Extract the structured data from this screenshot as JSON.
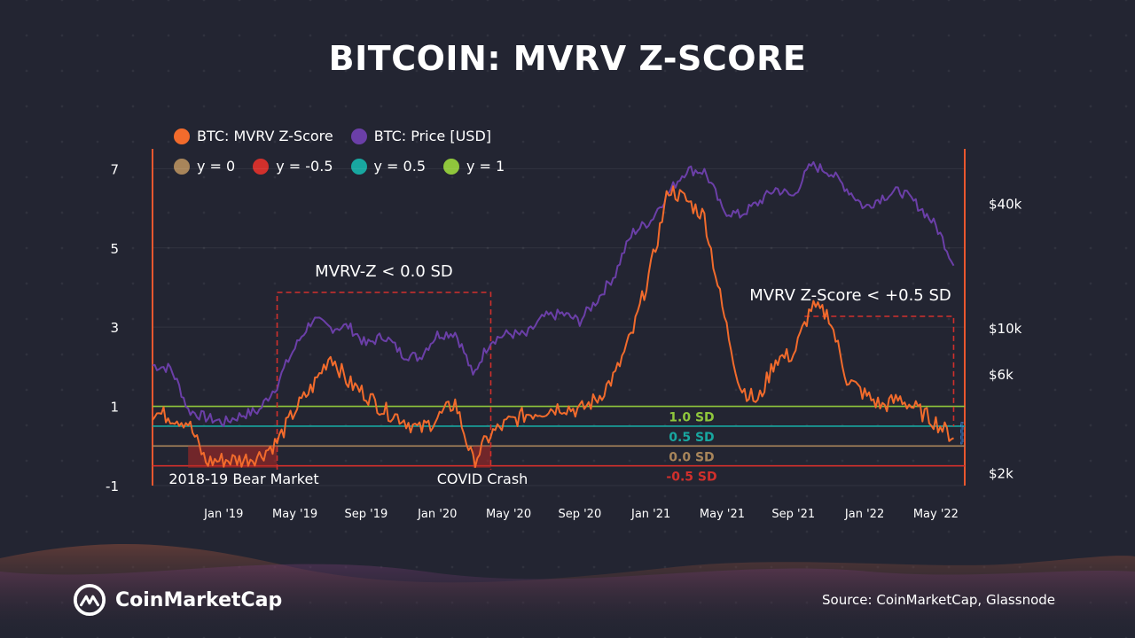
{
  "title": "BITCOIN: MVRV Z-SCORE",
  "legend": [
    {
      "label": "BTC: MVRV Z-Score",
      "color": "#f26b2c"
    },
    {
      "label": "BTC: Price [USD]",
      "color": "#6b3fa8"
    },
    {
      "label": "y = 0",
      "color": "#a8855a"
    },
    {
      "label": "y = -0.5",
      "color": "#d1302c"
    },
    {
      "label": "y = 0.5",
      "color": "#18a7a0"
    },
    {
      "label": "y = 1",
      "color": "#8fc63c"
    }
  ],
  "chart_data": {
    "type": "line",
    "title": "BITCOIN: MVRV Z-SCORE",
    "y_left_ticks": [
      "7",
      "5",
      "3",
      "1",
      "-1"
    ],
    "y_left_tick_values": [
      7,
      5,
      3,
      1,
      -1
    ],
    "y_left_range": [
      -1,
      7.5
    ],
    "y_right_ticks": [
      "$40k",
      "$10k",
      "$6k",
      "$2k"
    ],
    "y_right_tick_values": [
      40000,
      10000,
      6000,
      2000
    ],
    "y_right_scale": "log",
    "x_ticks": [
      "Jan '19",
      "May '19",
      "Sep '19",
      "Jan '20",
      "May '20",
      "Sep '20",
      "Jan '21",
      "May '21",
      "Sep '21",
      "Jan '22",
      "May '22"
    ],
    "x_range": [
      "2018-09",
      "2022-06-20"
    ],
    "grid": true,
    "legend_position": "top-left",
    "reference_lines": [
      {
        "label": "1.0 SD",
        "y": 1.0,
        "color": "#8fc63c"
      },
      {
        "label": "0.5 SD",
        "y": 0.5,
        "color": "#18a7a0"
      },
      {
        "label": "0.0 SD",
        "y": 0.0,
        "color": "#a8855a"
      },
      {
        "label": "-0.5 SD",
        "y": -0.5,
        "color": "#d1302c"
      }
    ],
    "annotations": [
      {
        "label": "MVRV-Z < 0.0 SD",
        "from": "2019-04",
        "to": "2020-04"
      },
      {
        "label": "MVRV Z-Score < +0.5 SD",
        "from": "2021-09-20",
        "to": "2022-06"
      },
      {
        "label": "2018-19 Bear Market",
        "from": "2018-11",
        "to": "2019-04"
      },
      {
        "label": "COVID Crash",
        "from": "2020-03",
        "to": "2020-04"
      }
    ],
    "series": [
      {
        "name": "BTC: MVRV Z-Score",
        "color": "#f26b2c",
        "x": [
          "2018-09",
          "2018-10",
          "2018-11",
          "2018-12",
          "2019-01",
          "2019-02",
          "2019-03",
          "2019-04",
          "2019-05",
          "2019-06",
          "2019-07",
          "2019-08",
          "2019-09",
          "2019-10",
          "2019-11",
          "2019-12",
          "2020-01",
          "2020-02",
          "2020-03",
          "2020-04",
          "2020-05",
          "2020-06",
          "2020-07",
          "2020-08",
          "2020-09",
          "2020-10",
          "2020-11",
          "2020-12",
          "2021-01",
          "2021-02",
          "2021-03",
          "2021-04",
          "2021-05",
          "2021-06",
          "2021-07",
          "2021-08",
          "2021-09",
          "2021-10",
          "2021-11",
          "2021-12",
          "2022-01",
          "2022-02",
          "2022-03",
          "2022-04",
          "2022-05",
          "2022-06"
        ],
        "values": [
          0.85,
          0.75,
          0.6,
          -0.4,
          -0.35,
          -0.35,
          -0.25,
          0.1,
          0.9,
          1.5,
          2.3,
          1.6,
          1.3,
          0.9,
          0.7,
          0.4,
          0.7,
          1.1,
          -0.4,
          0.3,
          0.6,
          0.8,
          0.9,
          1.0,
          0.9,
          1.2,
          1.8,
          2.9,
          4.5,
          6.5,
          6.2,
          5.8,
          3.5,
          1.5,
          1.1,
          2.2,
          2.3,
          3.5,
          3.3,
          1.7,
          1.3,
          1.0,
          1.2,
          0.9,
          0.6,
          0.2
        ]
      },
      {
        "name": "BTC: Price [USD]",
        "color": "#6b3fa8",
        "x": [
          "2018-09",
          "2018-10",
          "2018-11",
          "2018-12",
          "2019-01",
          "2019-02",
          "2019-03",
          "2019-04",
          "2019-05",
          "2019-06",
          "2019-07",
          "2019-08",
          "2019-09",
          "2019-10",
          "2019-11",
          "2019-12",
          "2020-01",
          "2020-02",
          "2020-03",
          "2020-04",
          "2020-05",
          "2020-06",
          "2020-07",
          "2020-08",
          "2020-09",
          "2020-10",
          "2020-11",
          "2020-12",
          "2021-01",
          "2021-02",
          "2021-03",
          "2021-04",
          "2021-05",
          "2021-06",
          "2021-07",
          "2021-08",
          "2021-09",
          "2021-10",
          "2021-11",
          "2021-12",
          "2022-01",
          "2022-02",
          "2022-03",
          "2022-04",
          "2022-05",
          "2022-06"
        ],
        "values": [
          6600,
          6400,
          4000,
          3700,
          3500,
          3800,
          4000,
          5300,
          8000,
          11000,
          10000,
          10200,
          8300,
          9200,
          7500,
          7200,
          9300,
          9500,
          5800,
          8700,
          9400,
          9200,
          11300,
          11700,
          10800,
          13700,
          18200,
          29000,
          33000,
          45000,
          58000,
          57000,
          37000,
          35000,
          40000,
          47000,
          43000,
          61000,
          57000,
          47000,
          38000,
          43000,
          46000,
          39000,
          31000,
          20000
        ]
      }
    ]
  },
  "brand": {
    "name": "CoinMarketCap",
    "logo_icon": "coinmarketcap-logo-icon"
  },
  "source": "Source: CoinMarketCap, Glassnode"
}
